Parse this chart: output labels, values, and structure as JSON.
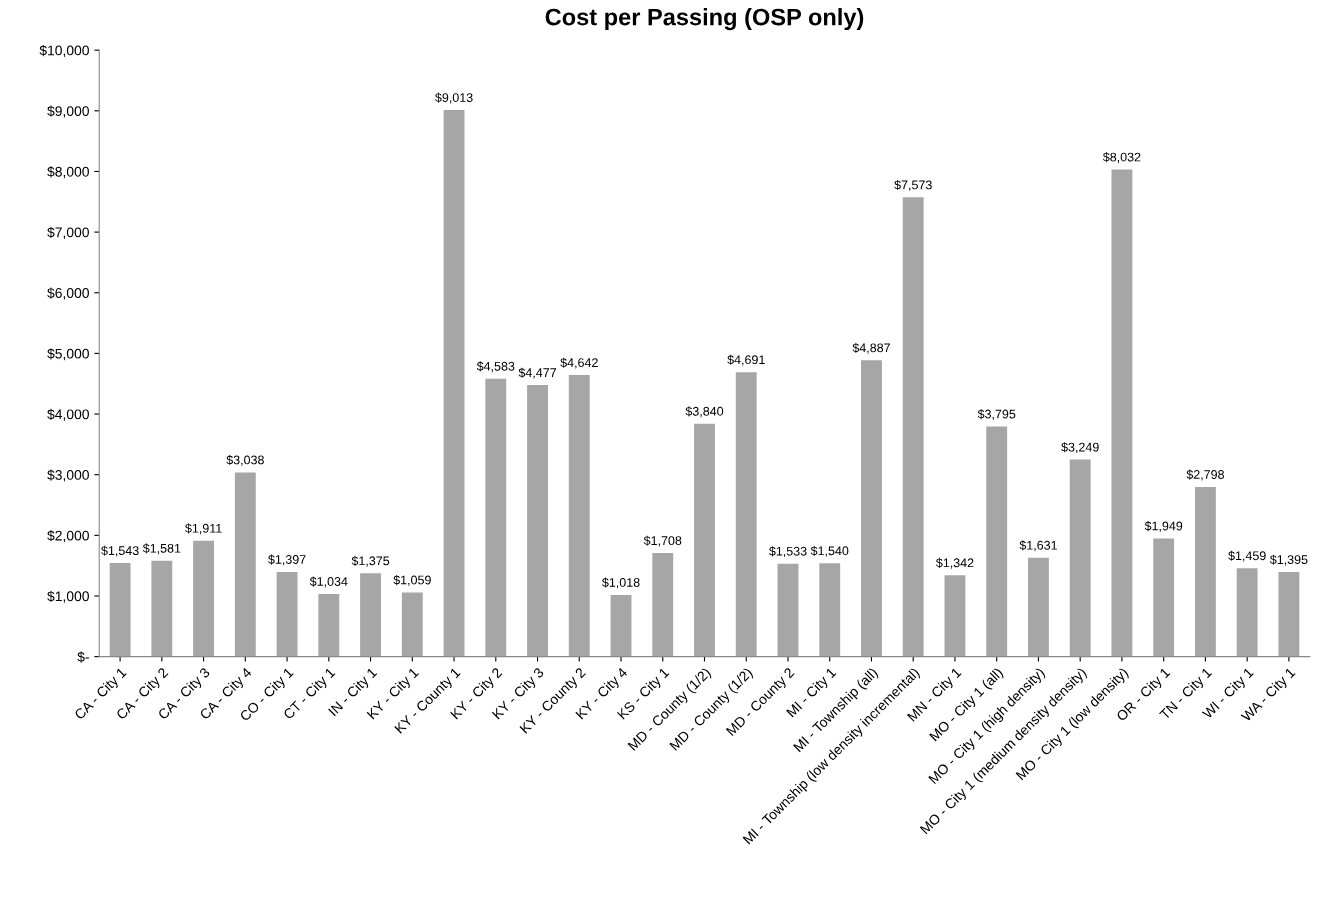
{
  "chart_data": {
    "type": "bar",
    "title": "Cost per Passing (OSP only)",
    "categories": [
      "CA - City 1",
      "CA - City 2",
      "CA - City 3",
      "CA - City 4",
      "CO - City 1",
      "CT - City 1",
      "IN - City 1",
      "KY - City 1",
      "KY - County 1",
      "KY - City 2",
      "KY - City 3",
      "KY - County 2",
      "KY - City 4",
      "KS - City 1",
      "MD - County (1/2)",
      "MD - County (1/2)",
      "MD - County 2",
      "MI - City 1",
      "MI - Township (all)",
      "MI - Township (low density incremental)",
      "MN - City 1",
      "MO - City 1 (all)",
      "MO - City 1 (high density)",
      "MO - City 1 (medium density density)",
      "MO - City 1 (low density)",
      "OR - City 1",
      "TN - City 1",
      "WI - City 1",
      "WA - City 1"
    ],
    "values": [
      1543,
      1581,
      1911,
      3038,
      1397,
      1034,
      1375,
      1059,
      9013,
      4583,
      4477,
      4642,
      1018,
      1708,
      3840,
      4691,
      1533,
      1540,
      4887,
      7573,
      1342,
      3795,
      1631,
      3249,
      8032,
      1949,
      2798,
      1459,
      1395
    ],
    "value_labels": [
      "$1,543",
      "$1,581",
      "$1,911",
      "$3,038",
      "$1,397",
      "$1,034",
      "$1,375",
      "$1,059",
      "$9,013",
      "$4,583",
      "$4,477",
      "$4,642",
      "$1,018",
      "$1,708",
      "$3,840",
      "$4,691",
      "$1,533",
      "$1,540",
      "$4,887",
      "$7,573",
      "$1,342",
      "$3,795",
      "$1,631",
      "$3,249",
      "$8,032",
      "$1,949",
      "$2,798",
      "$1,459",
      "$1,395"
    ],
    "color": "#a6a6a6",
    "ylim": [
      0,
      10000
    ],
    "yticks": [
      {
        "value": 0,
        "label": "$-"
      },
      {
        "value": 1000,
        "label": "$1,000"
      },
      {
        "value": 2000,
        "label": "$2,000"
      },
      {
        "value": 3000,
        "label": "$3,000"
      },
      {
        "value": 4000,
        "label": "$4,000"
      },
      {
        "value": 5000,
        "label": "$5,000"
      },
      {
        "value": 6000,
        "label": "$6,000"
      },
      {
        "value": 7000,
        "label": "$7,000"
      },
      {
        "value": 8000,
        "label": "$8,000"
      },
      {
        "value": 9000,
        "label": "$9,000"
      },
      {
        "value": 10000,
        "label": "$10,000"
      }
    ],
    "grid": false,
    "legend": false
  }
}
